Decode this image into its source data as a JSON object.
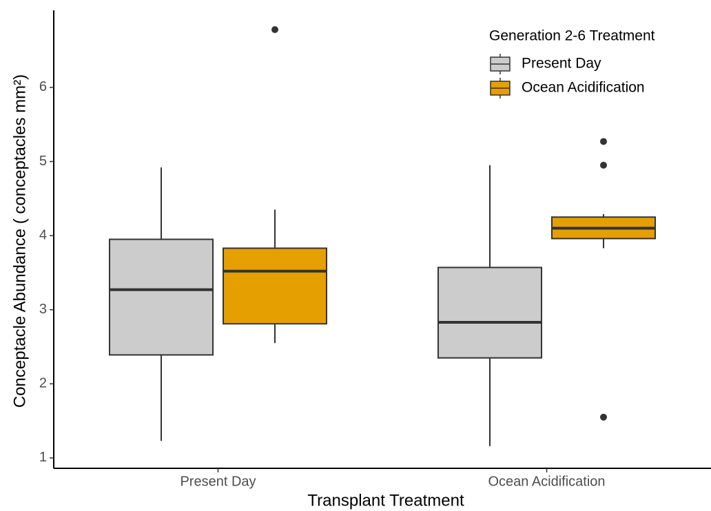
{
  "chart_data": {
    "type": "box",
    "xlabel": "Transplant Treatment",
    "ylabel": "Conceptacle Abundance ( conceptacles mm²)",
    "legend_title": "Generation 2-6 Treatment",
    "legend_position": "top-right",
    "categories": [
      "Present Day",
      "Ocean Acidification"
    ],
    "ylim": [
      0.86,
      7.04
    ],
    "yticks": [
      1,
      2,
      3,
      4,
      5,
      6
    ],
    "series": [
      {
        "name": "Present Day",
        "color": "#cccccc",
        "boxes": [
          {
            "min": 1.23,
            "q1": 2.39,
            "median": 3.27,
            "q3": 3.95,
            "max": 4.92,
            "outliers": []
          },
          {
            "min": 1.16,
            "q1": 2.35,
            "median": 2.83,
            "q3": 3.57,
            "max": 4.95,
            "outliers": []
          }
        ]
      },
      {
        "name": "Ocean Acidification",
        "color": "#e69f00",
        "boxes": [
          {
            "min": 2.55,
            "q1": 2.81,
            "median": 3.52,
            "q3": 3.83,
            "max": 4.35,
            "outliers": [
              6.78
            ]
          },
          {
            "min": 3.83,
            "q1": 3.96,
            "median": 4.1,
            "q3": 4.25,
            "max": 4.29,
            "outliers": [
              5.27,
              4.95,
              1.55
            ]
          }
        ]
      }
    ]
  }
}
